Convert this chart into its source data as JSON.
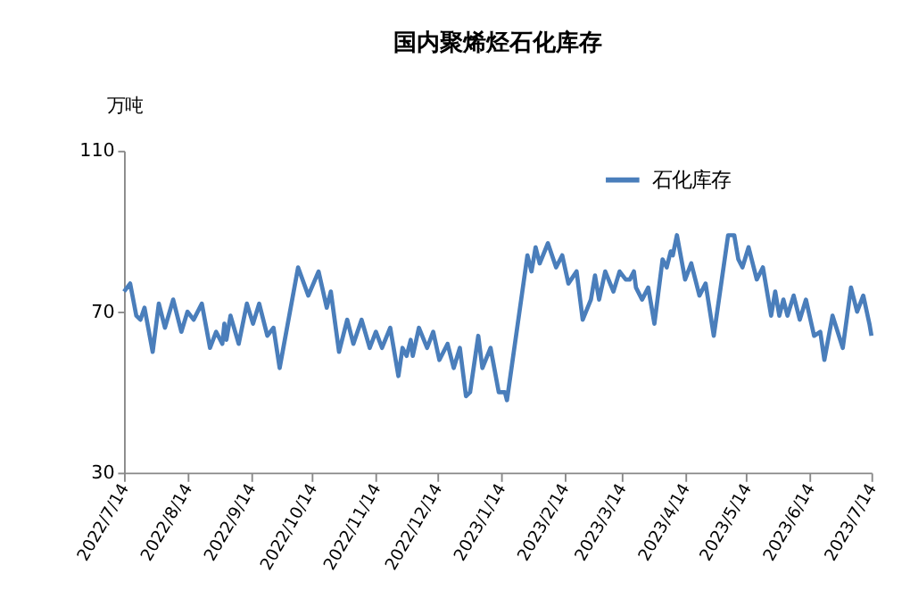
{
  "chart_data": {
    "type": "line",
    "title": "国内聚烯烃石化库存",
    "ylabel": "万吨",
    "x": [
      "2022-07-14",
      "2022-07-17",
      "2022-07-20",
      "2022-07-22",
      "2022-07-24",
      "2022-07-28",
      "2022-07-31",
      "2022-08-03",
      "2022-08-07",
      "2022-08-11",
      "2022-08-14",
      "2022-08-17",
      "2022-08-21",
      "2022-08-25",
      "2022-08-28",
      "2022-08-31",
      "2022-09-01",
      "2022-09-02",
      "2022-09-04",
      "2022-09-08",
      "2022-09-12",
      "2022-09-15",
      "2022-09-18",
      "2022-09-22",
      "2022-09-25",
      "2022-09-28",
      "2022-10-07",
      "2022-10-12",
      "2022-10-17",
      "2022-10-21",
      "2022-10-23",
      "2022-10-27",
      "2022-10-31",
      "2022-11-03",
      "2022-11-07",
      "2022-11-11",
      "2022-11-14",
      "2022-11-17",
      "2022-11-21",
      "2022-11-25",
      "2022-11-27",
      "2022-11-29",
      "2022-12-01",
      "2022-12-02",
      "2022-12-05",
      "2022-12-09",
      "2022-12-12",
      "2022-12-15",
      "2022-12-19",
      "2022-12-22",
      "2022-12-25",
      "2022-12-28",
      "2022-12-30",
      "2023-01-03",
      "2023-01-05",
      "2023-01-09",
      "2023-01-13",
      "2023-01-16",
      "2023-01-17",
      "2023-01-27",
      "2023-01-29",
      "2023-01-31",
      "2023-02-02",
      "2023-02-06",
      "2023-02-10",
      "2023-02-13",
      "2023-02-16",
      "2023-02-20",
      "2023-02-23",
      "2023-02-27",
      "2023-03-01",
      "2023-03-03",
      "2023-03-06",
      "2023-03-10",
      "2023-03-13",
      "2023-03-16",
      "2023-03-18",
      "2023-03-20",
      "2023-03-21",
      "2023-03-24",
      "2023-03-27",
      "2023-03-30",
      "2023-04-03",
      "2023-04-05",
      "2023-04-07",
      "2023-04-08",
      "2023-04-10",
      "2023-04-14",
      "2023-04-17",
      "2023-04-21",
      "2023-04-24",
      "2023-04-28",
      "2023-05-05",
      "2023-05-08",
      "2023-05-10",
      "2023-05-12",
      "2023-05-15",
      "2023-05-19",
      "2023-05-22",
      "2023-05-26",
      "2023-05-28",
      "2023-05-30",
      "2023-06-01",
      "2023-06-03",
      "2023-06-06",
      "2023-06-09",
      "2023-06-12",
      "2023-06-16",
      "2023-06-19",
      "2023-06-21",
      "2023-06-25",
      "2023-06-30",
      "2023-07-04",
      "2023-07-07",
      "2023-07-10",
      "2023-07-13",
      "2023-07-14"
    ],
    "series": [
      {
        "name": "石化库存",
        "color": "#4a7ebb",
        "values": [
          75,
          77,
          69,
          68,
          71,
          60,
          72,
          66,
          73,
          65,
          70,
          68,
          72,
          61,
          65,
          62,
          67,
          63,
          69,
          62,
          72,
          67,
          72,
          64,
          66,
          56,
          81,
          74,
          80,
          71,
          75,
          60,
          68,
          62,
          68,
          61,
          65,
          61,
          66,
          54,
          61,
          59,
          63,
          59,
          66,
          61,
          65,
          58,
          62,
          56,
          61,
          49,
          50,
          64,
          56,
          61,
          50,
          50,
          48,
          84,
          80,
          86,
          82,
          87,
          81,
          84,
          77,
          80,
          68,
          73,
          79,
          73,
          80,
          75,
          80,
          78,
          78,
          80,
          76,
          73,
          76,
          67,
          83,
          81,
          85,
          84,
          89,
          78,
          82,
          74,
          77,
          64,
          89,
          89,
          83,
          81,
          86,
          78,
          81,
          69,
          75,
          69,
          73,
          69,
          74,
          68,
          73,
          64,
          65,
          58,
          69,
          61,
          76,
          70,
          74,
          67,
          64
        ]
      }
    ],
    "xlim": [
      "2022-07-14",
      "2023-07-14"
    ],
    "xticks": [
      {
        "value": "2022-07-14",
        "label": "2022/7/14"
      },
      {
        "value": "2022-08-14",
        "label": "2022/8/14"
      },
      {
        "value": "2022-09-14",
        "label": "2022/9/14"
      },
      {
        "value": "2022-10-14",
        "label": "2022/10/14"
      },
      {
        "value": "2022-11-14",
        "label": "2022/11/14"
      },
      {
        "value": "2022-12-14",
        "label": "2022/12/14"
      },
      {
        "value": "2023-01-14",
        "label": "2023/1/14"
      },
      {
        "value": "2023-02-14",
        "label": "2023/2/14"
      },
      {
        "value": "2023-03-14",
        "label": "2023/3/14"
      },
      {
        "value": "2023-04-14",
        "label": "2023/4/14"
      },
      {
        "value": "2023-05-14",
        "label": "2023/5/14"
      },
      {
        "value": "2023-06-14",
        "label": "2023/6/14"
      },
      {
        "value": "2023-07-14",
        "label": "2023/7/14"
      }
    ],
    "ylim": [
      30,
      110
    ],
    "yticks": [
      30,
      70,
      110
    ],
    "grid": false,
    "legend": "top right",
    "marker": "none",
    "line_style": "solid"
  }
}
